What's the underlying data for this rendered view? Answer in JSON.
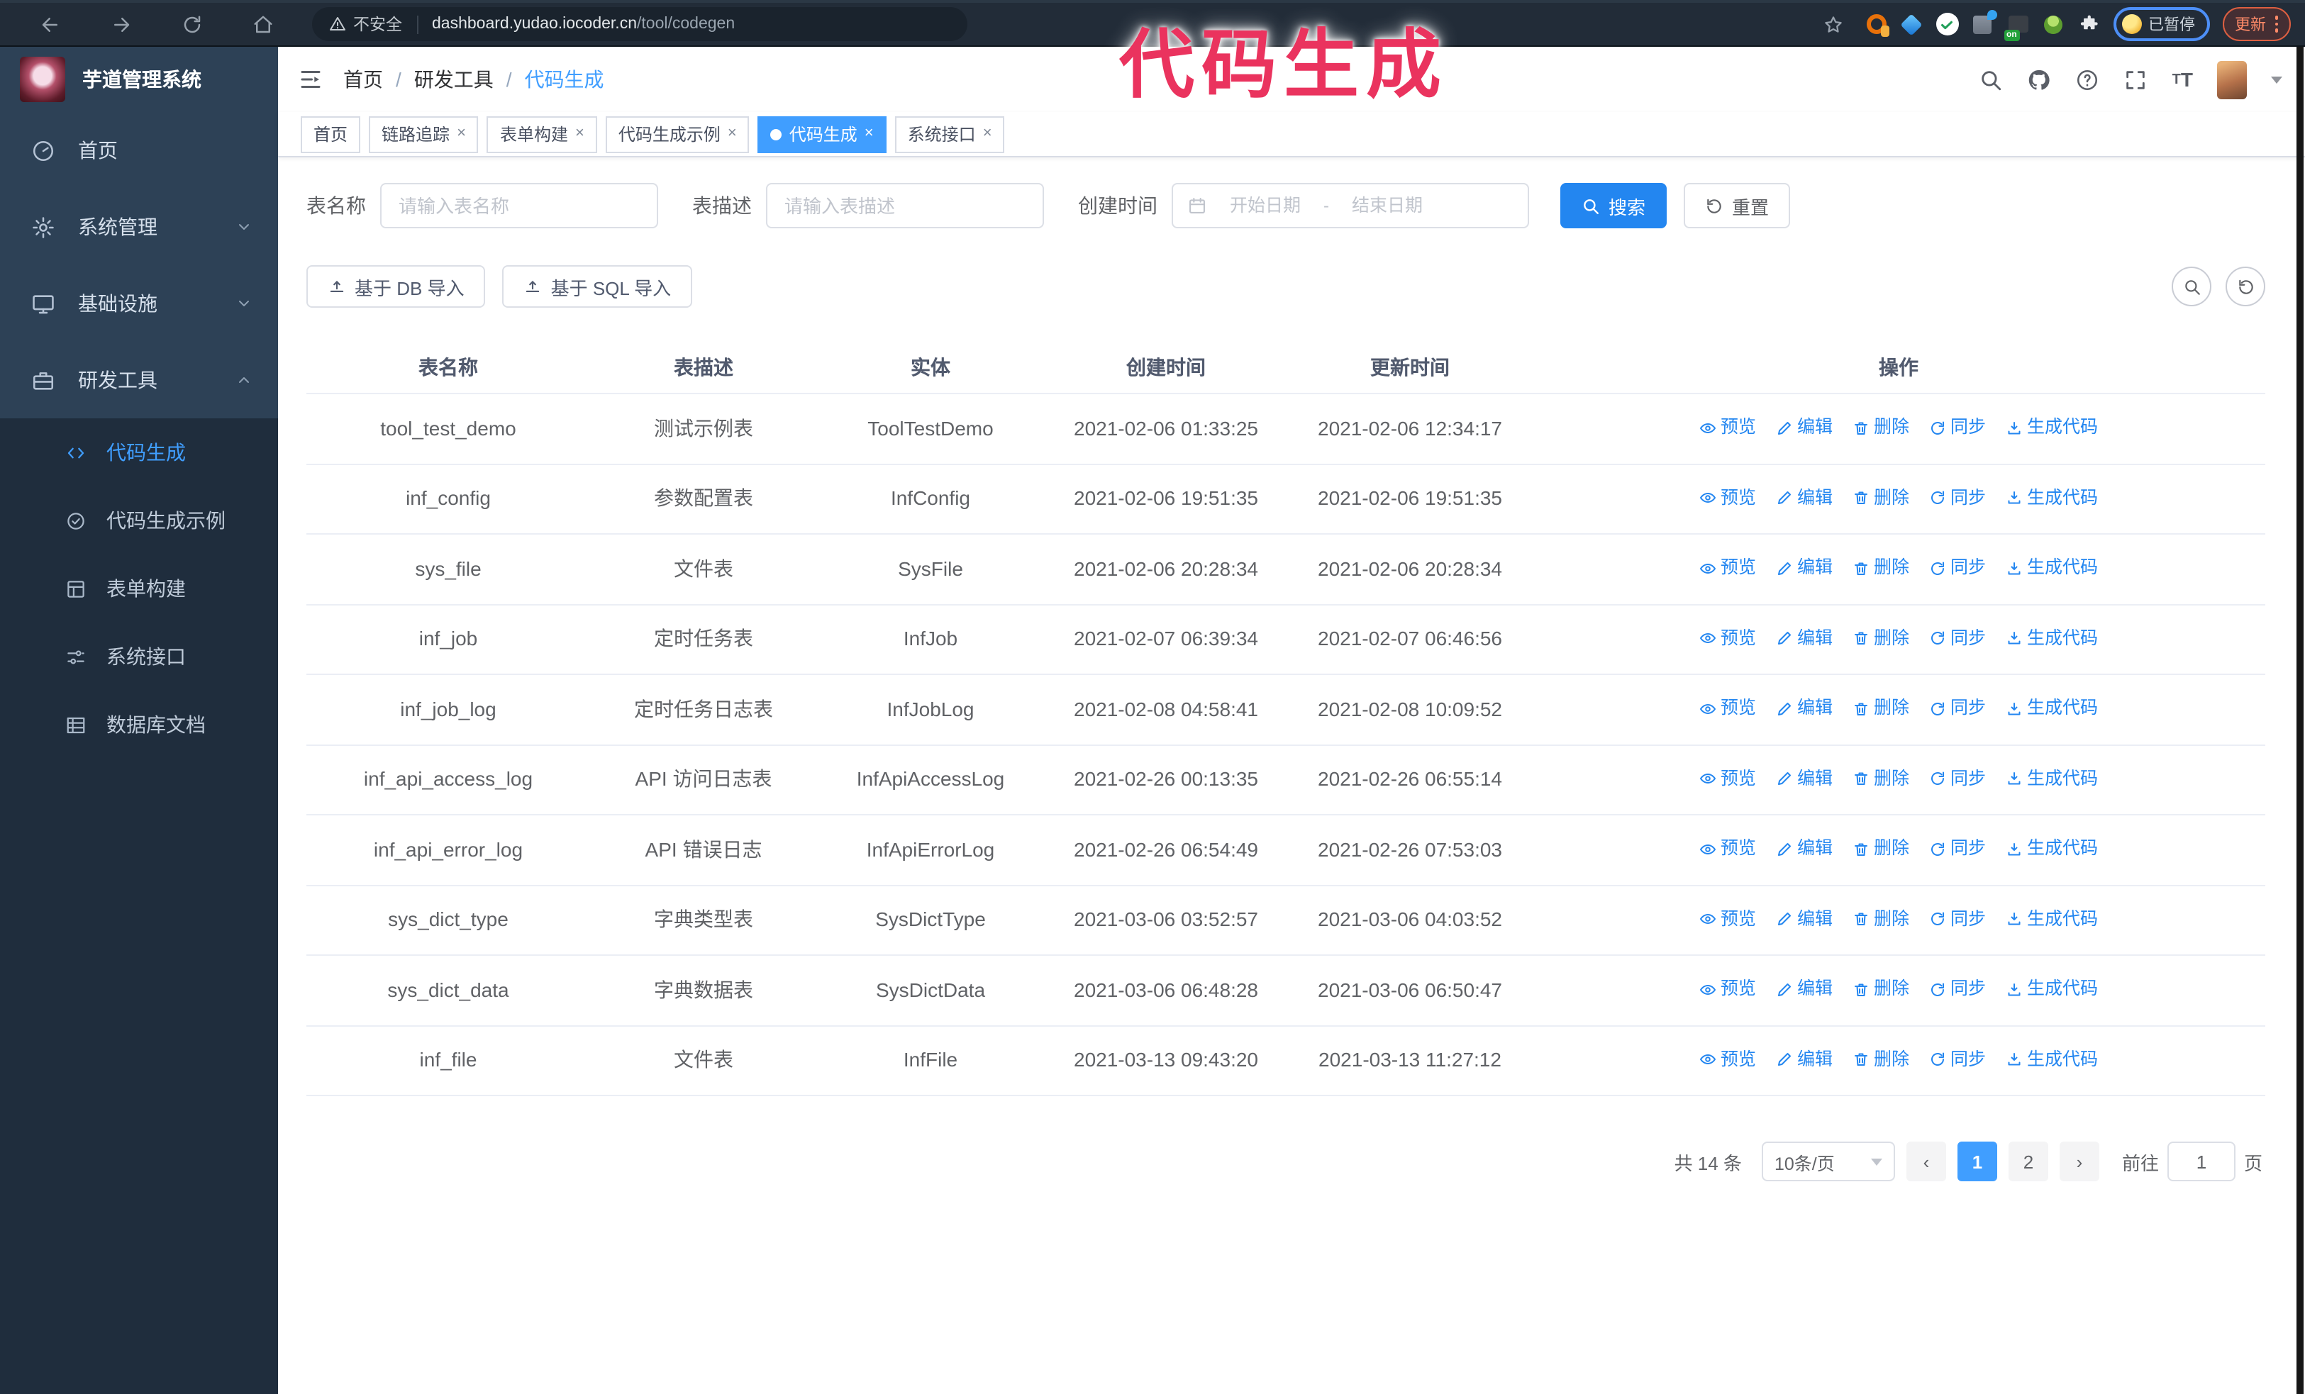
{
  "browser": {
    "security_label": "不安全",
    "url_host": "dashboard.yudao.iocoder.cn",
    "url_path": "/tool/codegen",
    "profile_badge": "已暂停",
    "update_button": "更新",
    "extension_on_tag": "on"
  },
  "annotation": "代码生成",
  "icons": {
    "search-icon": "magnifier",
    "gear-icon": "cogwheel",
    "github-icon": "octocat",
    "help-icon": "question-circle",
    "fullscreen-icon": "expand-corners",
    "font-size-icon": "tT",
    "calendar-icon": "calendar",
    "upload-icon": "arrow-up-tray",
    "refresh-icon": "circular-arrow"
  },
  "sidebar": {
    "logo_title": "芋道管理系统",
    "menu": [
      {
        "label": "首页"
      },
      {
        "label": "系统管理"
      },
      {
        "label": "基础设施"
      },
      {
        "label": "研发工具"
      }
    ],
    "submenu": [
      {
        "label": "代码生成"
      },
      {
        "label": "代码生成示例"
      },
      {
        "label": "表单构建"
      },
      {
        "label": "系统接口"
      },
      {
        "label": "数据库文档"
      }
    ]
  },
  "header": {
    "breadcrumb": [
      "首页",
      "研发工具",
      "代码生成"
    ]
  },
  "tabs": [
    {
      "label": "首页",
      "closable": false,
      "active": false
    },
    {
      "label": "链路追踪",
      "closable": true,
      "active": false
    },
    {
      "label": "表单构建",
      "closable": true,
      "active": false
    },
    {
      "label": "代码生成示例",
      "closable": true,
      "active": false
    },
    {
      "label": "代码生成",
      "closable": true,
      "active": true
    },
    {
      "label": "系统接口",
      "closable": true,
      "active": false
    }
  ],
  "filters": {
    "table_name_label": "表名称",
    "table_name_placeholder": "请输入表名称",
    "table_desc_label": "表描述",
    "table_desc_placeholder": "请输入表描述",
    "create_time_label": "创建时间",
    "start_placeholder": "开始日期",
    "range_separator": "-",
    "end_placeholder": "结束日期",
    "search_button": "搜索",
    "reset_button": "重置"
  },
  "toolbar": {
    "import_db_button": "基于 DB 导入",
    "import_sql_button": "基于 SQL 导入"
  },
  "table": {
    "columns": [
      "表名称",
      "表描述",
      "实体",
      "创建时间",
      "更新时间",
      "操作"
    ],
    "actions": [
      "预览",
      "编辑",
      "删除",
      "同步",
      "生成代码"
    ],
    "rows": [
      {
        "name": "tool_test_demo",
        "desc": "测试示例表",
        "entity": "ToolTestDemo",
        "created": "2021-02-06 01:33:25",
        "updated": "2021-02-06 12:34:17"
      },
      {
        "name": "inf_config",
        "desc": "参数配置表",
        "entity": "InfConfig",
        "created": "2021-02-06 19:51:35",
        "updated": "2021-02-06 19:51:35"
      },
      {
        "name": "sys_file",
        "desc": "文件表",
        "entity": "SysFile",
        "created": "2021-02-06 20:28:34",
        "updated": "2021-02-06 20:28:34"
      },
      {
        "name": "inf_job",
        "desc": "定时任务表",
        "entity": "InfJob",
        "created": "2021-02-07 06:39:34",
        "updated": "2021-02-07 06:46:56"
      },
      {
        "name": "inf_job_log",
        "desc": "定时任务日志表",
        "entity": "InfJobLog",
        "created": "2021-02-08 04:58:41",
        "updated": "2021-02-08 10:09:52"
      },
      {
        "name": "inf_api_access_log",
        "desc": "API 访问日志表",
        "entity": "InfApiAccessLog",
        "created": "2021-02-26 00:13:35",
        "updated": "2021-02-26 06:55:14"
      },
      {
        "name": "inf_api_error_log",
        "desc": "API 错误日志",
        "entity": "InfApiErrorLog",
        "created": "2021-02-26 06:54:49",
        "updated": "2021-02-26 07:53:03"
      },
      {
        "name": "sys_dict_type",
        "desc": "字典类型表",
        "entity": "SysDictType",
        "created": "2021-03-06 03:52:57",
        "updated": "2021-03-06 04:03:52"
      },
      {
        "name": "sys_dict_data",
        "desc": "字典数据表",
        "entity": "SysDictData",
        "created": "2021-03-06 06:48:28",
        "updated": "2021-03-06 06:50:47"
      },
      {
        "name": "inf_file",
        "desc": "文件表",
        "entity": "InfFile",
        "created": "2021-03-13 09:43:20",
        "updated": "2021-03-13 11:27:12"
      }
    ]
  },
  "pagination": {
    "total": "共 14 条",
    "page_size": "10条/页",
    "pages": [
      "1",
      "2"
    ],
    "active_page": "1",
    "goto_label": "前往",
    "goto_value": "1",
    "goto_suffix": "页"
  }
}
